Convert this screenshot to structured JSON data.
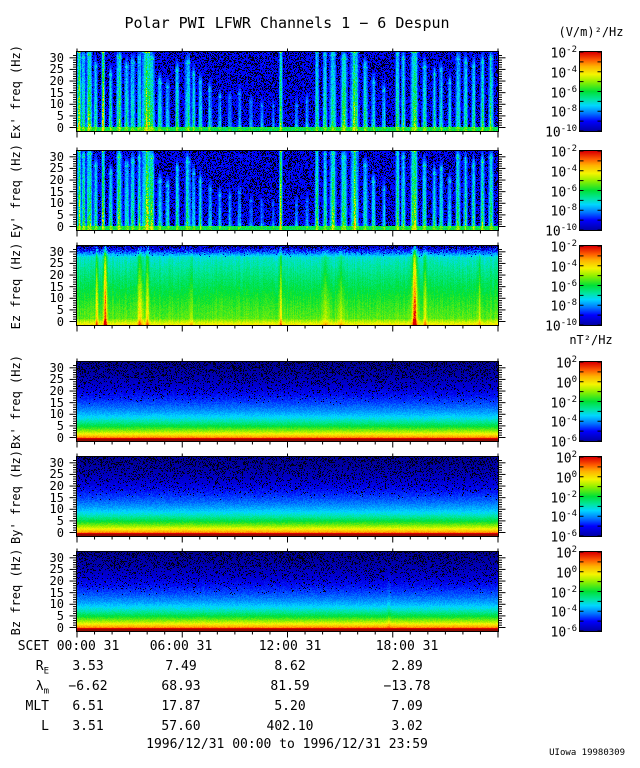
{
  "header": {
    "title": "Polar PWI LFWR Channels 1 − 6 Despun"
  },
  "footer": {
    "range": "1996/12/31 00:00 to 1996/12/31 23:59",
    "credit": "UIowa 19980309"
  },
  "chart_data": {
    "type": "heatmap",
    "title": "Polar PWI LFWR Channels 1 − 6 Despun",
    "subtitle_time_range": "1996/12/31 00:00 to 1996/12/31 23:59",
    "x_axis": {
      "label": "SCET",
      "tick_labels": [
        "00:00 31",
        "06:00 31",
        "12:00 31",
        "18:00 31"
      ],
      "hours_range": [
        0,
        24
      ],
      "minor_tick_hours": 1,
      "major_tick_hours": 6
    },
    "y_axis": {
      "units": "Hz",
      "tick_labels": [
        "0",
        "5",
        "10",
        "15",
        "20",
        "25",
        "30"
      ],
      "tick_values": [
        0,
        5,
        10,
        15,
        20,
        25,
        30
      ],
      "range": [
        0,
        32
      ]
    },
    "colorbar_e": {
      "unit": "(V/m)²/Hz",
      "tick_exponents": [
        "-2",
        "-4",
        "-6",
        "-8",
        "-10"
      ],
      "range": [
        "1e-2",
        "1e-10"
      ],
      "palette": "rainbow red→blue"
    },
    "colorbar_b": {
      "unit": "nT²/Hz",
      "tick_exponents": [
        "2",
        "0",
        "-2",
        "-4",
        "-6"
      ],
      "range": [
        "1e2",
        "1e-6"
      ],
      "palette": "rainbow red→blue"
    },
    "panels": [
      {
        "channel": "Ex'",
        "ylabel": "Ex' freq (Hz)",
        "colorbar": "e",
        "pattern": "impulsive broadband vertical bursts (cyan/green, some yellow) on dark blue noisy background, thin green line at 0 Hz",
        "render": {
          "style": "e_bursty",
          "seed": 11
        }
      },
      {
        "channel": "Ey'",
        "ylabel": "Ey' freq (Hz)",
        "colorbar": "e",
        "pattern": "same burst structure as Ex' with slightly different intensities",
        "render": {
          "style": "e_bursty",
          "seed": 23
        }
      },
      {
        "channel": "Ez",
        "ylabel": "Ez freq (Hz)",
        "colorbar": "e",
        "pattern": "smooth green continuum, yellow toward 0 Hz, cyan/blue at top, narrow orange-red vertical streaks near 01:00, 03:30, 19:15",
        "render": {
          "style": "e_smooth",
          "seed": 37
        }
      },
      {
        "channel": "Bx'",
        "ylabel": "Bx' freq (Hz)",
        "colorbar": "b",
        "pattern": "steady power-law falloff: dark red/orange at 0 Hz, yellow ~3 Hz, green ~6 Hz, cyan ~9 Hz, blue above ~12 Hz, speckled dark top",
        "render": {
          "style": "b_gradient",
          "seed": 41
        }
      },
      {
        "channel": "By'",
        "ylabel": "By' freq (Hz)",
        "colorbar": "b",
        "pattern": "same steady gradient as Bx'",
        "render": {
          "style": "b_gradient",
          "seed": 53
        }
      },
      {
        "channel": "Bz",
        "ylabel": "Bz freq (Hz)",
        "colorbar": "b",
        "pattern": "same steady gradient with one faint vertical enhancement near 17:45",
        "render": {
          "style": "b_gradient",
          "seed": 67,
          "streaks": [
            [
              0.74,
              1.2,
              0.5
            ],
            [
              0.3,
              1.0,
              0.2
            ]
          ]
        }
      }
    ],
    "burst_events": [
      [
        0.004,
        1.2,
        0.95,
        1
      ],
      [
        0.014,
        1.2,
        0.7,
        0.92
      ],
      [
        0.028,
        1.6,
        0.8,
        0.95
      ],
      [
        0.043,
        1.2,
        0.6,
        0.8
      ],
      [
        0.061,
        0.9,
        1.0,
        1
      ],
      [
        0.079,
        1.2,
        0.5,
        0.7
      ],
      [
        0.099,
        1.6,
        0.7,
        0.92
      ],
      [
        0.117,
        1.4,
        0.55,
        0.8
      ],
      [
        0.131,
        1.4,
        0.6,
        0.85
      ],
      [
        0.147,
        1.2,
        0.65,
        0.9
      ],
      [
        0.166,
        3.0,
        0.95,
        1
      ],
      [
        0.176,
        1.6,
        0.8,
        0.9
      ],
      [
        0.196,
        1.4,
        0.55,
        0.6
      ],
      [
        0.214,
        1.2,
        0.5,
        0.55
      ],
      [
        0.237,
        1.2,
        0.55,
        0.75
      ],
      [
        0.262,
        1.6,
        0.6,
        0.85
      ],
      [
        0.276,
        1.2,
        0.5,
        0.7
      ],
      [
        0.292,
        1.2,
        0.5,
        0.6
      ],
      [
        0.315,
        1.2,
        0.45,
        0.5
      ],
      [
        0.338,
        1.2,
        0.35,
        0.42
      ],
      [
        0.362,
        1.2,
        0.3,
        0.4
      ],
      [
        0.385,
        1.2,
        0.32,
        0.45
      ],
      [
        0.412,
        1.2,
        0.28,
        0.35
      ],
      [
        0.438,
        1.2,
        0.25,
        0.3
      ],
      [
        0.465,
        1.0,
        0.22,
        0.3
      ],
      [
        0.483,
        0.9,
        1.0,
        1
      ],
      [
        0.52,
        1.2,
        0.28,
        0.3
      ],
      [
        0.545,
        1.2,
        0.3,
        0.35
      ],
      [
        0.569,
        1.2,
        0.65,
        1
      ],
      [
        0.588,
        1.2,
        0.6,
        0.95
      ],
      [
        0.607,
        1.8,
        0.7,
        0.95
      ],
      [
        0.633,
        1.8,
        0.75,
        0.9
      ],
      [
        0.658,
        2.2,
        0.85,
        1
      ],
      [
        0.684,
        1.4,
        0.6,
        0.8
      ],
      [
        0.703,
        1.2,
        0.5,
        0.6
      ],
      [
        0.728,
        1.2,
        0.42,
        0.5
      ],
      [
        0.76,
        1.2,
        0.68,
        0.95
      ],
      [
        0.774,
        1.2,
        0.62,
        0.9
      ],
      [
        0.8,
        1.8,
        1.0,
        1
      ],
      [
        0.824,
        1.4,
        0.55,
        0.8
      ],
      [
        0.848,
        1.2,
        0.5,
        0.7
      ],
      [
        0.864,
        1.2,
        0.55,
        0.75
      ],
      [
        0.884,
        1.2,
        0.5,
        0.6
      ],
      [
        0.904,
        1.4,
        0.65,
        0.9
      ],
      [
        0.922,
        1.2,
        0.6,
        0.85
      ],
      [
        0.941,
        1.2,
        0.55,
        0.8
      ],
      [
        0.962,
        1.2,
        0.6,
        0.85
      ],
      [
        0.982,
        1.4,
        0.65,
        0.9
      ]
    ],
    "ez_streaks": [
      [
        0.046,
        0.9,
        0.5
      ],
      [
        0.066,
        1.1,
        0.9
      ],
      [
        0.149,
        1.8,
        0.45
      ],
      [
        0.166,
        1.2,
        0.4
      ],
      [
        0.27,
        1.2,
        0.18
      ],
      [
        0.483,
        0.9,
        0.4
      ],
      [
        0.59,
        2.5,
        0.2
      ],
      [
        0.625,
        2.2,
        0.2
      ],
      [
        0.801,
        1.6,
        0.95
      ],
      [
        0.826,
        1.1,
        0.35
      ],
      [
        0.955,
        0.9,
        0.25
      ]
    ],
    "ephemeris": {
      "row_labels": [
        [
          "SCET",
          ""
        ],
        [
          "R",
          "E"
        ],
        [
          "λ",
          "m"
        ],
        [
          "MLT",
          ""
        ],
        [
          "L",
          ""
        ]
      ],
      "rows": [
        [
          "00:00 31",
          "06:00 31",
          "12:00 31",
          "18:00 31"
        ],
        [
          "3.53",
          "7.49",
          "8.62",
          "2.89"
        ],
        [
          "−6.62",
          "68.93",
          "81.59",
          "−13.78"
        ],
        [
          "6.51",
          "17.87",
          "5.20",
          "7.09"
        ],
        [
          "3.51",
          "57.60",
          "402.10",
          "3.02"
        ]
      ]
    }
  }
}
